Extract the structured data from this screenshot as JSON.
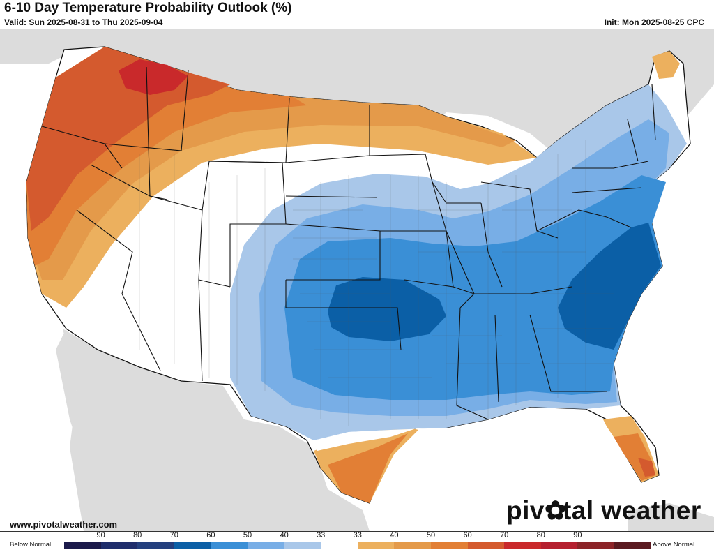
{
  "header": {
    "title": "6-10 Day Temperature Probability Outlook (%)",
    "valid": "Valid: Sun 2025-08-31 to Thu 2025-09-04",
    "init": "Init: Mon 2025-08-25 CPC"
  },
  "footer": {
    "website": "www.pivotalweather.com",
    "brand_prefix": "piv",
    "brand_suffix": "tal weather"
  },
  "legend": {
    "below_label": "Below Normal",
    "above_label": "Above Normal",
    "bins": [
      {
        "label": "90",
        "color": "#1b1a4a"
      },
      {
        "label": "80",
        "color": "#1f2d6b"
      },
      {
        "label": "70",
        "color": "#243f7e"
      },
      {
        "label": "60",
        "color": "#0b5fa6"
      },
      {
        "label": "50",
        "color": "#3a8fd6"
      },
      {
        "label": "40",
        "color": "#78aee6"
      },
      {
        "label": "33",
        "color": "#a9c7e9"
      },
      {
        "label": "",
        "color": "#ffffff"
      },
      {
        "label": "33",
        "color": "#ecb05e"
      },
      {
        "label": "40",
        "color": "#e49a4a"
      },
      {
        "label": "50",
        "color": "#e27f35"
      },
      {
        "label": "60",
        "color": "#d45a2e"
      },
      {
        "label": "70",
        "color": "#c9292b"
      },
      {
        "label": "80",
        "color": "#b5202f"
      },
      {
        "label": "90",
        "color": "#8c2428"
      },
      {
        "label": "",
        "color": "#5a1a20"
      }
    ]
  },
  "map": {
    "ocean_color": "#ffffff",
    "land_color": "#dcdcdc",
    "below_colors": [
      "#a9c7e9",
      "#78aee6",
      "#3a8fd6",
      "#0b5fa6"
    ],
    "above_colors": [
      "#ecb05e",
      "#e49a4a",
      "#e27f35",
      "#d45a2e",
      "#c9292b"
    ]
  }
}
